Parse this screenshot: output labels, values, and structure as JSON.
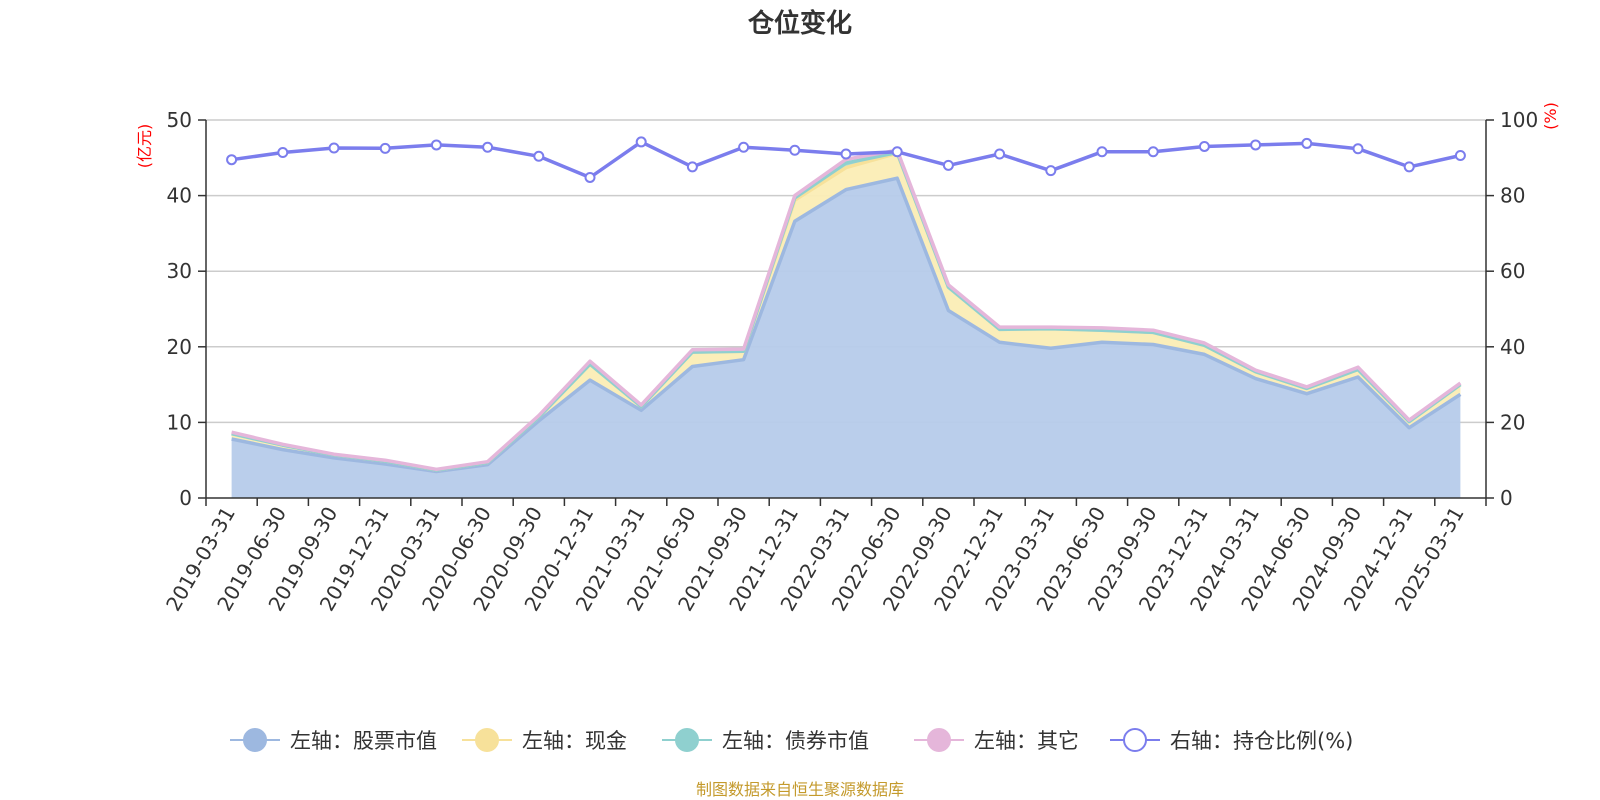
{
  "chart_data": {
    "type": "area",
    "title": "仓位变化",
    "left_axis_unit": "(亿元)",
    "right_axis_unit": "(%)",
    "left_ylim": [
      0,
      50
    ],
    "left_ticks": [
      "0",
      "10",
      "20",
      "30",
      "40",
      "50"
    ],
    "right_ylim": [
      0,
      100
    ],
    "right_ticks": [
      "0",
      "20",
      "40",
      "60",
      "80",
      "100"
    ],
    "grid": true,
    "legend_position": "bottom",
    "categories": [
      "2019-03-31",
      "2019-06-30",
      "2019-09-30",
      "2019-12-31",
      "2020-03-31",
      "2020-06-30",
      "2020-09-30",
      "2020-12-31",
      "2021-03-31",
      "2021-06-30",
      "2021-09-30",
      "2021-12-31",
      "2022-03-31",
      "2022-06-30",
      "2022-09-30",
      "2022-12-31",
      "2023-03-31",
      "2023-06-30",
      "2023-09-30",
      "2023-12-31",
      "2024-03-31",
      "2024-06-30",
      "2024-09-30",
      "2024-12-31",
      "2025-03-31"
    ],
    "stacked_series": [
      {
        "name": "左轴：股票市值",
        "axis": "left",
        "color": "#9db8e0",
        "fill": "#b6cbea",
        "values": [
          7.8,
          6.4,
          5.3,
          4.5,
          3.5,
          4.4,
          10.2,
          15.6,
          11.6,
          17.4,
          18.3,
          36.6,
          40.8,
          42.3,
          24.8,
          20.6,
          19.8,
          20.6,
          20.3,
          19.0,
          15.8,
          13.8,
          16.0,
          9.3,
          13.7
        ]
      },
      {
        "name": "左轴：现金",
        "axis": "left",
        "color": "#f7e19a",
        "fill": "#fbedb5",
        "values": [
          0.7,
          0.6,
          0.4,
          0.4,
          0.2,
          0.3,
          0.5,
          2.1,
          0.5,
          1.9,
          1.1,
          2.8,
          2.9,
          3.3,
          3.1,
          1.7,
          2.6,
          1.6,
          1.6,
          1.2,
          0.9,
          0.7,
          1.0,
          0.8,
          1.3
        ]
      },
      {
        "name": "左轴：债券市值",
        "axis": "left",
        "color": "#8fd0cf",
        "fill": "#a6dad8",
        "values": [
          0,
          0,
          0,
          0,
          0,
          0,
          0,
          0,
          0,
          0,
          0,
          0.3,
          0.6,
          0.1,
          0,
          0,
          0,
          0,
          0,
          0,
          0,
          0,
          0,
          0,
          0
        ]
      },
      {
        "name": "左轴：其它",
        "axis": "left",
        "color": "#e5b6da",
        "fill": "#f0cfe8",
        "values": [
          0.2,
          0.1,
          0.1,
          0.1,
          0.1,
          0.1,
          0.2,
          0.4,
          0.2,
          0.3,
          0.3,
          0.3,
          0.5,
          0.3,
          0.3,
          0.3,
          0.2,
          0.3,
          0.3,
          0.3,
          0.2,
          0.2,
          0.3,
          0.2,
          0.2
        ]
      }
    ],
    "line_series": {
      "name": "右轴：持仓比例(%)",
      "axis": "right",
      "color": "#7b7ded",
      "values": [
        89.5,
        91.4,
        92.6,
        92.5,
        93.4,
        92.8,
        90.4,
        84.8,
        94.2,
        87.6,
        92.8,
        92.0,
        91.0,
        91.6,
        88.0,
        91.0,
        86.6,
        91.6,
        91.6,
        93.0,
        93.4,
        93.8,
        92.4,
        87.6,
        90.6
      ]
    },
    "source": "制图数据来自恒生聚源数据库"
  }
}
